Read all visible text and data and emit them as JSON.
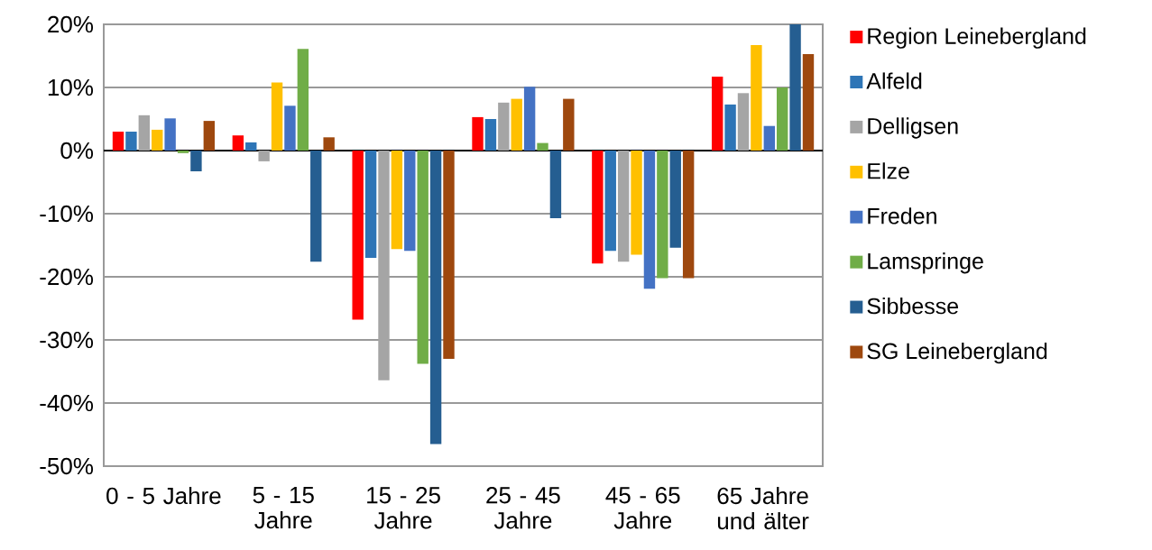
{
  "chart_data": {
    "type": "bar",
    "categories": [
      "0 -  5 Jahre",
      "5 - 15 Jahre",
      "15 - 25 Jahre",
      "25 - 45 Jahre",
      "45 - 65 Jahre",
      "65 Jahre und älter"
    ],
    "series": [
      {
        "name": "Region Leinebergland",
        "color": "#ff0000",
        "values": [
          3.0,
          2.4,
          -26.8,
          5.3,
          -17.9,
          11.7
        ]
      },
      {
        "name": "Alfeld",
        "color": "#2e75b6",
        "values": [
          3.0,
          1.3,
          -17.0,
          5.0,
          -15.9,
          7.3
        ]
      },
      {
        "name": "Delligsen",
        "color": "#a5a5a5",
        "values": [
          5.6,
          -1.7,
          -36.4,
          7.6,
          -17.6,
          9.1
        ]
      },
      {
        "name": "Elze",
        "color": "#ffc000",
        "values": [
          3.3,
          10.8,
          -15.6,
          8.2,
          -16.5,
          16.7
        ]
      },
      {
        "name": "Freden",
        "color": "#4472c4",
        "values": [
          5.1,
          7.1,
          -15.9,
          10.1,
          -21.9,
          3.9
        ]
      },
      {
        "name": "Lamspringe",
        "color": "#70ad47",
        "values": [
          -0.4,
          16.1,
          -33.8,
          1.2,
          -20.2,
          10.0
        ]
      },
      {
        "name": "Sibbesse",
        "color": "#255e91",
        "values": [
          -3.3,
          -17.6,
          -46.5,
          -10.7,
          -15.4,
          20.0
        ]
      },
      {
        "name": "SG Leinebergland",
        "color": "#9e480e",
        "values": [
          4.7,
          2.1,
          -33.0,
          8.2,
          -20.2,
          15.3
        ]
      }
    ],
    "ylim": [
      -50,
      20
    ],
    "yticks": [
      {
        "value": -50,
        "label": "-50%"
      },
      {
        "value": -40,
        "label": "-40%"
      },
      {
        "value": -30,
        "label": "-30%"
      },
      {
        "value": -20,
        "label": "-20%"
      },
      {
        "value": -10,
        "label": "-10%"
      },
      {
        "value": 0,
        "label": "0%"
      },
      {
        "value": 10,
        "label": "10%"
      },
      {
        "value": 20,
        "label": "20%"
      }
    ],
    "grid": "y",
    "legend": "right"
  }
}
